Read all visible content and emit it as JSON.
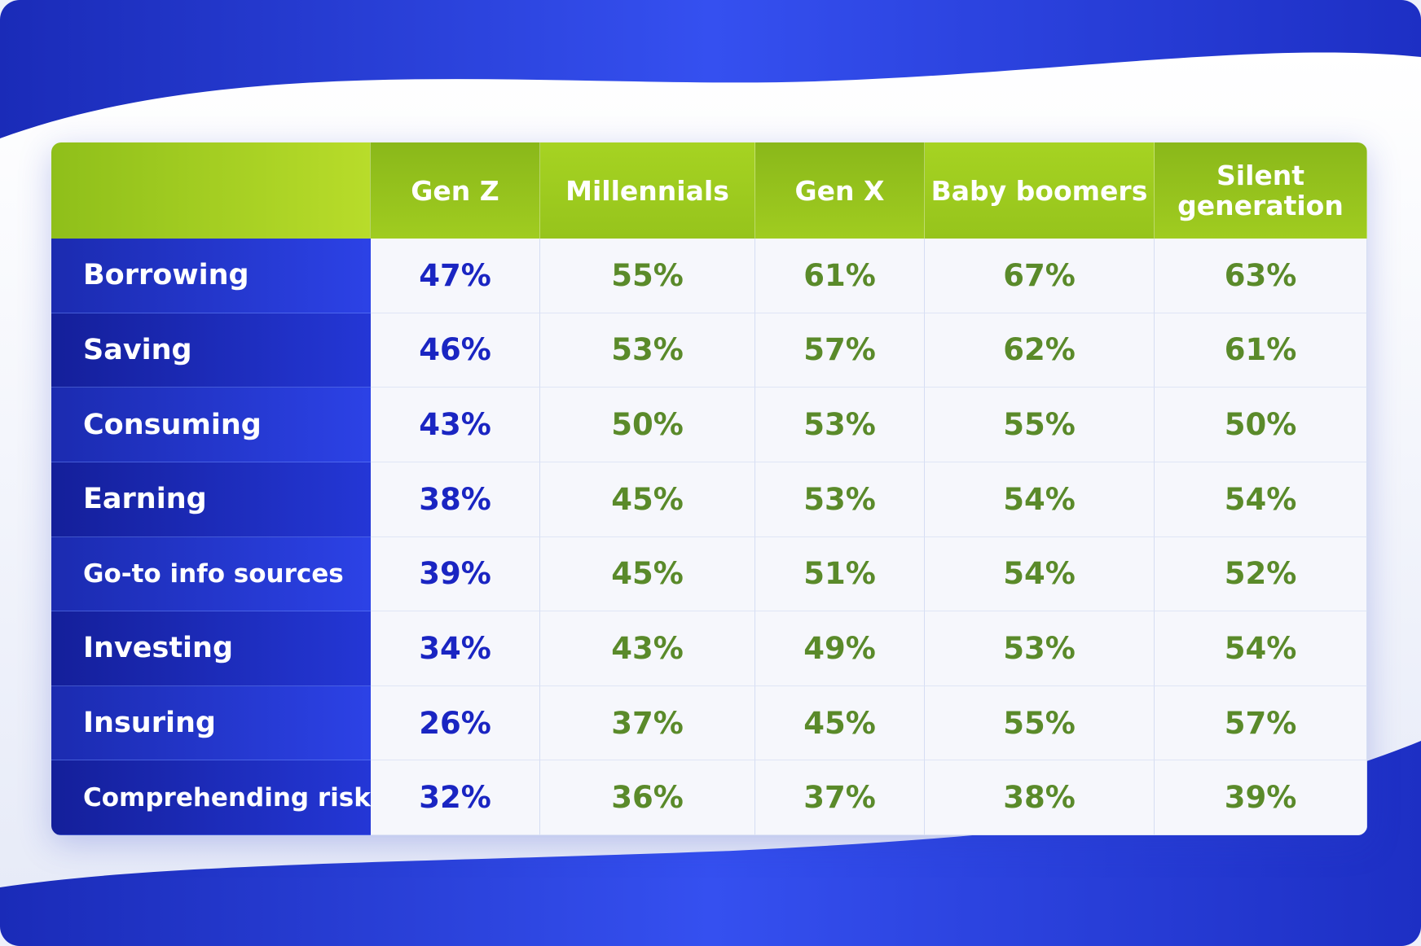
{
  "colors": {
    "header": "#9cc41c",
    "label_col": "#1c2fc0",
    "genz": "#1a25c2",
    "others": "#5a8a2a",
    "background": "#2a3fe0"
  },
  "chart_data": {
    "type": "table",
    "columns": [
      "Gen Z",
      "Millennials",
      "Gen X",
      "Baby boomers",
      "Silent generation"
    ],
    "rows": [
      {
        "label": "Borrowing",
        "values": [
          "47%",
          "55%",
          "61%",
          "67%",
          "63%"
        ]
      },
      {
        "label": "Saving",
        "values": [
          "46%",
          "53%",
          "57%",
          "62%",
          "61%"
        ]
      },
      {
        "label": "Consuming",
        "values": [
          "43%",
          "50%",
          "53%",
          "55%",
          "50%"
        ]
      },
      {
        "label": "Earning",
        "values": [
          "38%",
          "45%",
          "53%",
          "54%",
          "54%"
        ]
      },
      {
        "label": "Go-to info sources",
        "values": [
          "39%",
          "45%",
          "51%",
          "54%",
          "52%"
        ]
      },
      {
        "label": "Investing",
        "values": [
          "34%",
          "43%",
          "49%",
          "53%",
          "54%"
        ]
      },
      {
        "label": "Insuring",
        "values": [
          "26%",
          "37%",
          "45%",
          "55%",
          "57%"
        ]
      },
      {
        "label": "Comprehending risk",
        "values": [
          "32%",
          "36%",
          "37%",
          "38%",
          "39%"
        ]
      }
    ]
  }
}
